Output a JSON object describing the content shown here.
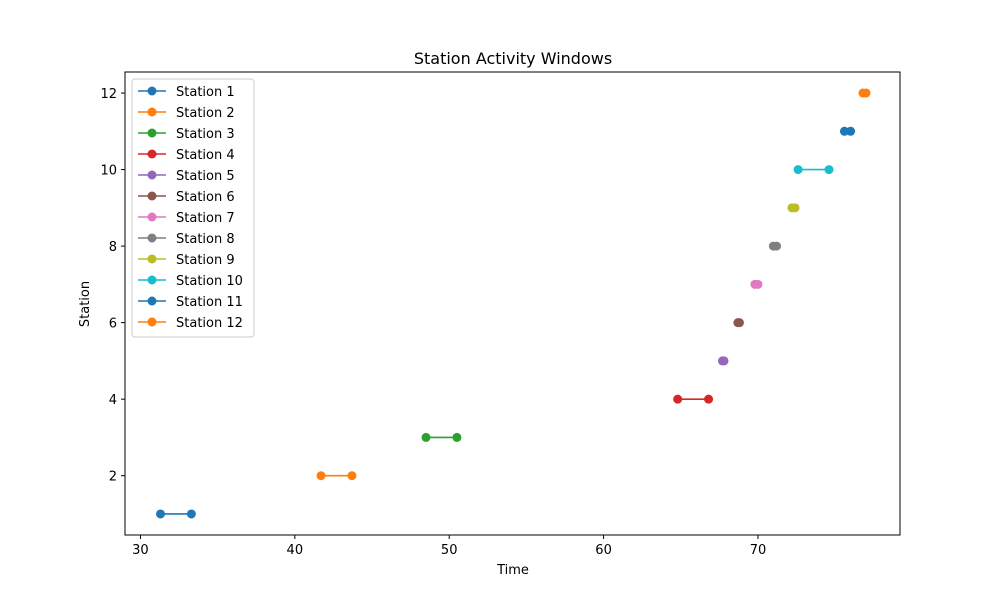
{
  "chart_data": {
    "type": "line",
    "title": "Station Activity Windows",
    "xlabel": "Time",
    "ylabel": "Station",
    "xlim": [
      29,
      79.2
    ],
    "ylim": [
      0.45,
      12.55
    ],
    "xticks": [
      30,
      40,
      50,
      60,
      70
    ],
    "yticks": [
      2,
      4,
      6,
      8,
      10,
      12
    ],
    "grid": false,
    "legend_position": "upper-left",
    "series": [
      {
        "name": "Station 1",
        "color": "#1f77b4",
        "x": [
          31.3,
          33.3
        ],
        "y": [
          1,
          1
        ]
      },
      {
        "name": "Station 2",
        "color": "#ff7f0e",
        "x": [
          41.7,
          43.7
        ],
        "y": [
          2,
          2
        ]
      },
      {
        "name": "Station 3",
        "color": "#2ca02c",
        "x": [
          48.5,
          50.5
        ],
        "y": [
          3,
          3
        ]
      },
      {
        "name": "Station 4",
        "color": "#d62728",
        "x": [
          64.8,
          66.8
        ],
        "y": [
          4,
          4
        ]
      },
      {
        "name": "Station 5",
        "color": "#9467bd",
        "x": [
          67.7,
          67.8
        ],
        "y": [
          5,
          5
        ]
      },
      {
        "name": "Station 6",
        "color": "#8c564b",
        "x": [
          68.7,
          68.8
        ],
        "y": [
          6,
          6
        ]
      },
      {
        "name": "Station 7",
        "color": "#e377c2",
        "x": [
          69.8,
          70.0
        ],
        "y": [
          7,
          7
        ]
      },
      {
        "name": "Station 8",
        "color": "#7f7f7f",
        "x": [
          71.0,
          71.2
        ],
        "y": [
          8,
          8
        ]
      },
      {
        "name": "Station 9",
        "color": "#bcbd22",
        "x": [
          72.2,
          72.4
        ],
        "y": [
          9,
          9
        ]
      },
      {
        "name": "Station 10",
        "color": "#17becf",
        "x": [
          72.6,
          74.6
        ],
        "y": [
          10,
          10
        ]
      },
      {
        "name": "Station 11",
        "color": "#1f77b4",
        "x": [
          75.6,
          76.0
        ],
        "y": [
          11,
          11
        ]
      },
      {
        "name": "Station 12",
        "color": "#ff7f0e",
        "x": [
          76.8,
          77.0
        ],
        "y": [
          12,
          12
        ]
      }
    ]
  }
}
